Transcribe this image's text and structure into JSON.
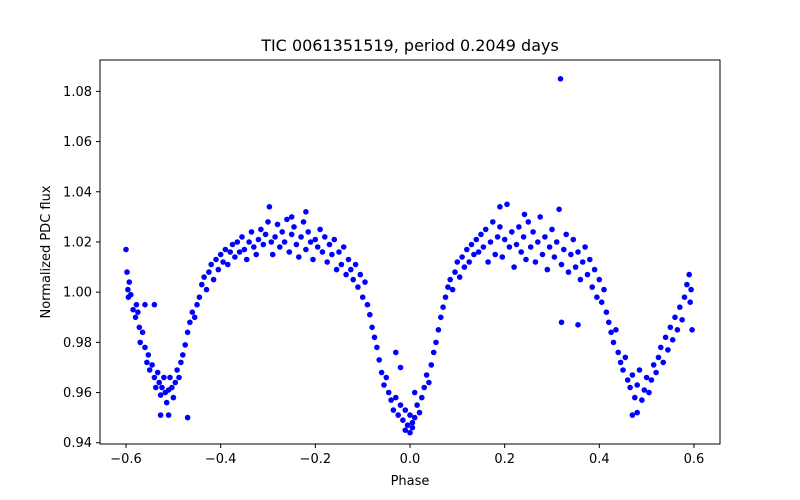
{
  "chart_data": {
    "type": "scatter",
    "title": "TIC 0061351519, period 0.2049 days",
    "xlabel": "Phase",
    "ylabel": "Normalized PDC flux",
    "xlim": [
      -0.655,
      0.655
    ],
    "ylim": [
      0.9395,
      1.0925
    ],
    "grid": false,
    "legend": "none",
    "marker_color": "#0000ff",
    "x_ticks": [
      -0.6,
      -0.4,
      -0.2,
      0.0,
      0.2,
      0.4,
      0.6
    ],
    "x_tick_labels": [
      "−0.6",
      "−0.4",
      "−0.2",
      "0.0",
      "0.2",
      "0.4",
      "0.6"
    ],
    "y_ticks": [
      0.94,
      0.96,
      0.98,
      1.0,
      1.02,
      1.04,
      1.06,
      1.08
    ],
    "y_tick_labels": [
      "0.94",
      "0.96",
      "0.98",
      "1.00",
      "1.02",
      "1.04",
      "1.06",
      "1.08"
    ],
    "series": [
      {
        "name": "flux",
        "points": [
          [
            -0.6,
            1.017
          ],
          [
            -0.598,
            1.008
          ],
          [
            -0.596,
            1.001
          ],
          [
            -0.595,
            0.998
          ],
          [
            -0.593,
            1.004
          ],
          [
            -0.59,
            0.999
          ],
          [
            -0.585,
            0.993
          ],
          [
            -0.58,
            0.99
          ],
          [
            -0.578,
            0.995
          ],
          [
            -0.575,
            0.992
          ],
          [
            -0.572,
            0.986
          ],
          [
            -0.57,
            0.98
          ],
          [
            -0.565,
            0.984
          ],
          [
            -0.56,
            0.978
          ],
          [
            -0.556,
            0.972
          ],
          [
            -0.553,
            0.975
          ],
          [
            -0.55,
            0.969
          ],
          [
            -0.545,
            0.971
          ],
          [
            -0.54,
            0.966
          ],
          [
            -0.537,
            0.962
          ],
          [
            -0.533,
            0.968
          ],
          [
            -0.53,
            0.964
          ],
          [
            -0.527,
            0.959
          ],
          [
            -0.524,
            0.962
          ],
          [
            -0.52,
            0.966
          ],
          [
            -0.517,
            0.96
          ],
          [
            -0.514,
            0.956
          ],
          [
            -0.51,
            0.961
          ],
          [
            -0.507,
            0.966
          ],
          [
            -0.503,
            0.962
          ],
          [
            -0.5,
            0.958
          ],
          [
            -0.496,
            0.964
          ],
          [
            -0.492,
            0.969
          ],
          [
            -0.488,
            0.966
          ],
          [
            -0.484,
            0.972
          ],
          [
            -0.48,
            0.975
          ],
          [
            -0.475,
            0.979
          ],
          [
            -0.47,
            0.984
          ],
          [
            -0.465,
            0.988
          ],
          [
            -0.46,
            0.992
          ],
          [
            -0.455,
            0.99
          ],
          [
            -0.45,
            0.995
          ],
          [
            -0.445,
            0.998
          ],
          [
            -0.44,
            1.003
          ],
          [
            -0.435,
            1.006
          ],
          [
            -0.43,
            1.001
          ],
          [
            -0.425,
            1.008
          ],
          [
            -0.42,
            1.011
          ],
          [
            -0.415,
            1.005
          ],
          [
            -0.41,
            1.013
          ],
          [
            -0.405,
            1.009
          ],
          [
            -0.4,
            1.015
          ],
          [
            -0.395,
            1.012
          ],
          [
            -0.39,
            1.017
          ],
          [
            -0.385,
            1.011
          ],
          [
            -0.38,
            1.016
          ],
          [
            -0.375,
            1.019
          ],
          [
            -0.37,
            1.014
          ],
          [
            -0.365,
            1.02
          ],
          [
            -0.36,
            1.016
          ],
          [
            -0.355,
            1.022
          ],
          [
            -0.35,
            1.017
          ],
          [
            -0.345,
            1.013
          ],
          [
            -0.34,
            1.02
          ],
          [
            -0.335,
            1.024
          ],
          [
            -0.33,
            1.018
          ],
          [
            -0.325,
            1.015
          ],
          [
            -0.32,
            1.021
          ],
          [
            -0.315,
            1.025
          ],
          [
            -0.31,
            1.019
          ],
          [
            -0.305,
            1.023
          ],
          [
            -0.3,
            1.028
          ],
          [
            -0.297,
            1.034
          ],
          [
            -0.293,
            1.02
          ],
          [
            -0.29,
            1.015
          ],
          [
            -0.285,
            1.022
          ],
          [
            -0.28,
            1.027
          ],
          [
            -0.275,
            1.018
          ],
          [
            -0.27,
            1.024
          ],
          [
            -0.265,
            1.02
          ],
          [
            -0.26,
            1.029
          ],
          [
            -0.255,
            1.016
          ],
          [
            -0.25,
            1.023
          ],
          [
            -0.245,
            1.026
          ],
          [
            -0.24,
            1.019
          ],
          [
            -0.235,
            1.014
          ],
          [
            -0.23,
            1.022
          ],
          [
            -0.225,
            1.028
          ],
          [
            -0.22,
            1.017
          ],
          [
            -0.215,
            1.024
          ],
          [
            -0.21,
            1.02
          ],
          [
            -0.205,
            1.013
          ],
          [
            -0.2,
            1.021
          ],
          [
            -0.195,
            1.018
          ],
          [
            -0.19,
            1.025
          ],
          [
            -0.185,
            1.016
          ],
          [
            -0.18,
            1.022
          ],
          [
            -0.175,
            1.012
          ],
          [
            -0.17,
            1.019
          ],
          [
            -0.165,
            1.015
          ],
          [
            -0.16,
            1.021
          ],
          [
            -0.155,
            1.009
          ],
          [
            -0.15,
            1.016
          ],
          [
            -0.145,
            1.011
          ],
          [
            -0.14,
            1.018
          ],
          [
            -0.135,
            1.007
          ],
          [
            -0.13,
            1.013
          ],
          [
            -0.125,
            1.009
          ],
          [
            -0.12,
            1.005
          ],
          [
            -0.115,
            1.011
          ],
          [
            -0.11,
            1.002
          ],
          [
            -0.105,
            1.007
          ],
          [
            -0.1,
            0.998
          ],
          [
            -0.095,
            1.004
          ],
          [
            -0.09,
            0.995
          ],
          [
            -0.085,
            0.991
          ],
          [
            -0.08,
            0.986
          ],
          [
            -0.075,
            0.982
          ],
          [
            -0.07,
            0.978
          ],
          [
            -0.065,
            0.973
          ],
          [
            -0.06,
            0.968
          ],
          [
            -0.055,
            0.963
          ],
          [
            -0.05,
            0.966
          ],
          [
            -0.045,
            0.96
          ],
          [
            -0.04,
            0.957
          ],
          [
            -0.035,
            0.953
          ],
          [
            -0.03,
            0.958
          ],
          [
            -0.025,
            0.951
          ],
          [
            -0.02,
            0.955
          ],
          [
            -0.015,
            0.949
          ],
          [
            -0.01,
            0.953
          ],
          [
            -0.005,
            0.947
          ],
          [
            0.0,
            0.951
          ],
          [
            0.005,
            0.946
          ],
          [
            0.01,
            0.95
          ],
          [
            0.015,
            0.955
          ],
          [
            0.02,
            0.952
          ],
          [
            0.025,
            0.958
          ],
          [
            0.03,
            0.962
          ],
          [
            0.035,
            0.967
          ],
          [
            0.04,
            0.964
          ],
          [
            0.045,
            0.971
          ],
          [
            0.05,
            0.976
          ],
          [
            0.055,
            0.98
          ],
          [
            0.06,
            0.985
          ],
          [
            0.065,
            0.99
          ],
          [
            0.07,
            0.994
          ],
          [
            0.075,
            0.998
          ],
          [
            0.08,
            1.002
          ],
          [
            0.085,
            1.005
          ],
          [
            0.09,
            1.001
          ],
          [
            0.095,
            1.008
          ],
          [
            0.1,
            1.012
          ],
          [
            0.105,
            1.006
          ],
          [
            0.11,
            1.014
          ],
          [
            0.115,
            1.01
          ],
          [
            0.12,
            1.017
          ],
          [
            0.125,
            1.012
          ],
          [
            0.13,
            1.019
          ],
          [
            0.135,
            1.015
          ],
          [
            0.14,
            1.021
          ],
          [
            0.145,
            1.016
          ],
          [
            0.15,
            1.023
          ],
          [
            0.155,
            1.018
          ],
          [
            0.16,
            1.025
          ],
          [
            0.165,
            1.012
          ],
          [
            0.17,
            1.02
          ],
          [
            0.175,
            1.028
          ],
          [
            0.18,
            1.015
          ],
          [
            0.185,
            1.022
          ],
          [
            0.19,
            1.026
          ],
          [
            0.195,
            1.014
          ],
          [
            0.2,
            1.021
          ],
          [
            0.205,
            1.035
          ],
          [
            0.21,
            1.018
          ],
          [
            0.215,
            1.024
          ],
          [
            0.22,
            1.01
          ],
          [
            0.225,
            1.019
          ],
          [
            0.23,
            1.026
          ],
          [
            0.235,
            1.016
          ],
          [
            0.24,
            1.022
          ],
          [
            0.245,
            1.013
          ],
          [
            0.25,
            1.028
          ],
          [
            0.255,
            1.018
          ],
          [
            0.26,
            1.024
          ],
          [
            0.265,
            1.012
          ],
          [
            0.27,
            1.02
          ],
          [
            0.275,
            1.03
          ],
          [
            0.28,
            1.015
          ],
          [
            0.285,
            1.022
          ],
          [
            0.29,
            1.009
          ],
          [
            0.295,
            1.018
          ],
          [
            0.3,
            1.025
          ],
          [
            0.305,
            1.014
          ],
          [
            0.31,
            1.02
          ],
          [
            0.315,
            1.033
          ],
          [
            0.318,
            1.085
          ],
          [
            0.32,
            1.011
          ],
          [
            0.325,
            1.017
          ],
          [
            0.33,
            1.023
          ],
          [
            0.335,
            1.008
          ],
          [
            0.34,
            1.015
          ],
          [
            0.345,
            1.021
          ],
          [
            0.35,
            1.01
          ],
          [
            0.355,
            1.016
          ],
          [
            0.36,
            1.005
          ],
          [
            0.365,
            1.012
          ],
          [
            0.37,
            1.018
          ],
          [
            0.375,
            1.007
          ],
          [
            0.38,
            1.013
          ],
          [
            0.385,
            1.002
          ],
          [
            0.39,
            1.009
          ],
          [
            0.395,
            0.998
          ],
          [
            0.4,
            1.005
          ],
          [
            0.405,
            0.996
          ],
          [
            0.41,
            1.001
          ],
          [
            0.415,
            0.992
          ],
          [
            0.42,
            0.988
          ],
          [
            0.425,
            0.984
          ],
          [
            0.43,
            0.98
          ],
          [
            0.435,
            0.985
          ],
          [
            0.44,
            0.976
          ],
          [
            0.445,
            0.972
          ],
          [
            0.45,
            0.969
          ],
          [
            0.455,
            0.974
          ],
          [
            0.46,
            0.965
          ],
          [
            0.465,
            0.962
          ],
          [
            0.47,
            0.967
          ],
          [
            0.475,
            0.958
          ],
          [
            0.48,
            0.963
          ],
          [
            0.485,
            0.969
          ],
          [
            0.49,
            0.957
          ],
          [
            0.495,
            0.961
          ],
          [
            0.5,
            0.966
          ],
          [
            0.505,
            0.96
          ],
          [
            0.51,
            0.965
          ],
          [
            0.515,
            0.971
          ],
          [
            0.52,
            0.968
          ],
          [
            0.525,
            0.974
          ],
          [
            0.53,
            0.978
          ],
          [
            0.535,
            0.972
          ],
          [
            0.54,
            0.982
          ],
          [
            0.545,
            0.977
          ],
          [
            0.55,
            0.986
          ],
          [
            0.555,
            0.981
          ],
          [
            0.56,
            0.99
          ],
          [
            0.565,
            0.985
          ],
          [
            0.57,
            0.994
          ],
          [
            0.575,
            0.989
          ],
          [
            0.58,
            0.998
          ],
          [
            0.585,
            1.003
          ],
          [
            0.59,
            1.007
          ],
          [
            0.592,
            0.996
          ],
          [
            0.594,
            1.001
          ],
          [
            0.596,
            0.985
          ],
          [
            -0.47,
            0.95
          ],
          [
            -0.51,
            0.951
          ],
          [
            -0.527,
            0.951
          ],
          [
            0.47,
            0.951
          ],
          [
            0.48,
            0.952
          ],
          [
            0.355,
            0.987
          ],
          [
            0.32,
            0.988
          ],
          [
            -0.56,
            0.995
          ],
          [
            -0.54,
            0.995
          ],
          [
            0.19,
            1.034
          ],
          [
            0.242,
            1.031
          ],
          [
            -0.22,
            1.032
          ],
          [
            -0.25,
            1.03
          ],
          [
            0.01,
            0.96
          ],
          [
            -0.02,
            0.97
          ],
          [
            0.0,
            0.944
          ],
          [
            0.005,
            0.948
          ],
          [
            -0.01,
            0.945
          ],
          [
            -0.03,
            0.976
          ]
        ]
      }
    ]
  }
}
